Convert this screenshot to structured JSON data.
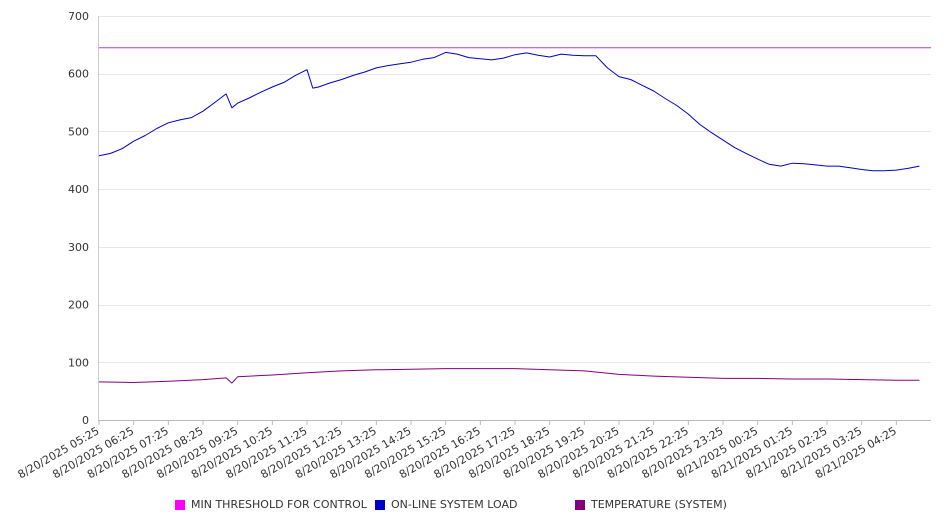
{
  "chart_data": {
    "type": "line",
    "title": "",
    "xlabel": "",
    "ylabel": "",
    "ylim": [
      0,
      700
    ],
    "yticks": [
      0,
      100,
      200,
      300,
      400,
      500,
      600,
      700
    ],
    "grid": true,
    "legend_position": "bottom",
    "x_tick_labels": [
      "8/20/2025 05:25",
      "8/20/2025 06:25",
      "8/20/2025 07:25",
      "8/20/2025 08:25",
      "8/20/2025 09:25",
      "8/20/2025 10:25",
      "8/20/2025 11:25",
      "8/20/2025 12:25",
      "8/20/2025 13:25",
      "8/20/2025 14:25",
      "8/20/2025 15:25",
      "8/20/2025 16:25",
      "8/20/2025 17:25",
      "8/20/2025 18:25",
      "8/20/2025 19:25",
      "8/20/2025 20:25",
      "8/20/2025 21:25",
      "8/20/2025 22:25",
      "8/20/2025 23:25",
      "8/21/2025 00:25",
      "8/21/2025 01:25",
      "8/21/2025 02:25",
      "8/21/2025 03:25",
      "8/21/2025 04:25"
    ],
    "series": [
      {
        "name": "MIN THRESHOLD FOR CONTROL",
        "color": "#cc33cc",
        "x": [
          "8/20/2025 05:25",
          "8/21/2025 05:25"
        ],
        "values": [
          645,
          645
        ]
      },
      {
        "name": "ON-LINE SYSTEM LOAD",
        "color": "#0000cc",
        "x": [
          "8/20/2025 05:25",
          "8/20/2025 05:45",
          "8/20/2025 06:05",
          "8/20/2025 06:25",
          "8/20/2025 06:45",
          "8/20/2025 07:05",
          "8/20/2025 07:25",
          "8/20/2025 07:45",
          "8/20/2025 08:05",
          "8/20/2025 08:25",
          "8/20/2025 08:45",
          "8/20/2025 09:05",
          "8/20/2025 09:15",
          "8/20/2025 09:25",
          "8/20/2025 09:45",
          "8/20/2025 10:05",
          "8/20/2025 10:25",
          "8/20/2025 10:45",
          "8/20/2025 11:05",
          "8/20/2025 11:25",
          "8/20/2025 11:35",
          "8/20/2025 11:45",
          "8/20/2025 12:05",
          "8/20/2025 12:25",
          "8/20/2025 12:45",
          "8/20/2025 13:05",
          "8/20/2025 13:25",
          "8/20/2025 13:45",
          "8/20/2025 14:05",
          "8/20/2025 14:25",
          "8/20/2025 14:45",
          "8/20/2025 15:05",
          "8/20/2025 15:25",
          "8/20/2025 15:45",
          "8/20/2025 16:05",
          "8/20/2025 16:25",
          "8/20/2025 16:45",
          "8/20/2025 17:05",
          "8/20/2025 17:25",
          "8/20/2025 17:45",
          "8/20/2025 18:05",
          "8/20/2025 18:25",
          "8/20/2025 18:45",
          "8/20/2025 19:05",
          "8/20/2025 19:25",
          "8/20/2025 19:45",
          "8/20/2025 20:05",
          "8/20/2025 20:25",
          "8/20/2025 20:45",
          "8/20/2025 21:05",
          "8/20/2025 21:25",
          "8/20/2025 21:45",
          "8/20/2025 22:05",
          "8/20/2025 22:25",
          "8/20/2025 22:45",
          "8/20/2025 23:05",
          "8/20/2025 23:25",
          "8/20/2025 23:45",
          "8/21/2025 00:05",
          "8/21/2025 00:25",
          "8/21/2025 00:45",
          "8/21/2025 01:05",
          "8/21/2025 01:25",
          "8/21/2025 01:45",
          "8/21/2025 02:05",
          "8/21/2025 02:25",
          "8/21/2025 02:45",
          "8/21/2025 03:05",
          "8/21/2025 03:25",
          "8/21/2025 03:45",
          "8/21/2025 04:05",
          "8/21/2025 04:25",
          "8/21/2025 04:45",
          "8/21/2025 05:05"
        ],
        "values": [
          458,
          462,
          470,
          483,
          493,
          505,
          515,
          520,
          524,
          535,
          550,
          565,
          541,
          549,
          558,
          568,
          577,
          585,
          597,
          607,
          575,
          577,
          584,
          590,
          597,
          603,
          610,
          614,
          617,
          620,
          625,
          628,
          637,
          634,
          628,
          626,
          624,
          627,
          633,
          636,
          632,
          629,
          634,
          632,
          631,
          631,
          610,
          595,
          590,
          580,
          570,
          557,
          545,
          530,
          512,
          498,
          485,
          472,
          462,
          452,
          443,
          440,
          445,
          444,
          442,
          440,
          440,
          437,
          434,
          432,
          432,
          433,
          436,
          440
        ]
      },
      {
        "name": "TEMPERATURE (SYSTEM)",
        "color": "#800080",
        "x": [
          "8/20/2025 05:25",
          "8/20/2025 06:25",
          "8/20/2025 07:25",
          "8/20/2025 08:25",
          "8/20/2025 09:05",
          "8/20/2025 09:15",
          "8/20/2025 09:25",
          "8/20/2025 10:25",
          "8/20/2025 11:25",
          "8/20/2025 12:25",
          "8/20/2025 13:25",
          "8/20/2025 14:25",
          "8/20/2025 15:25",
          "8/20/2025 16:25",
          "8/20/2025 17:25",
          "8/20/2025 18:25",
          "8/20/2025 19:25",
          "8/20/2025 20:25",
          "8/20/2025 21:25",
          "8/20/2025 22:25",
          "8/20/2025 23:25",
          "8/21/2025 00:25",
          "8/21/2025 01:25",
          "8/21/2025 02:25",
          "8/21/2025 03:25",
          "8/21/2025 04:25",
          "8/21/2025 05:05"
        ],
        "values": [
          66,
          65,
          67,
          70,
          73,
          64,
          75,
          78,
          82,
          85,
          87,
          88,
          89,
          89,
          89,
          87,
          85,
          79,
          76,
          74,
          72,
          72,
          71,
          71,
          70,
          69,
          69
        ]
      }
    ]
  }
}
